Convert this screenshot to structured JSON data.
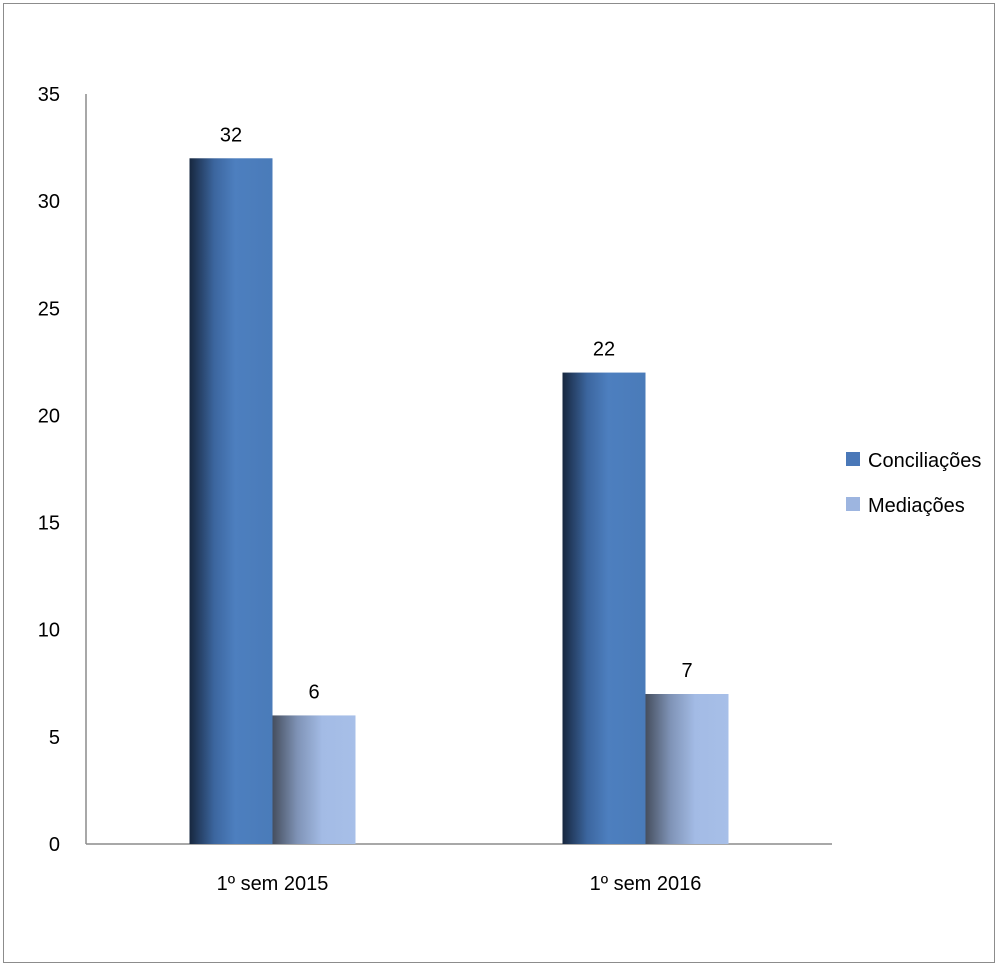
{
  "chart_data": {
    "type": "bar",
    "categories": [
      "1º sem 2015",
      "1º sem 2016"
    ],
    "series": [
      {
        "name": "Conciliações",
        "values": [
          32,
          22
        ],
        "color": "#4a78b8"
      },
      {
        "name": "Mediações",
        "values": [
          6,
          7
        ],
        "color": "#9db5e0"
      }
    ],
    "y_ticks": [
      "0",
      "5",
      "10",
      "15",
      "20",
      "25",
      "30",
      "35"
    ],
    "ylim": [
      0,
      35
    ],
    "data_labels": true,
    "grid": false,
    "legend_position": "right",
    "title": "",
    "xlabel": "",
    "ylabel": ""
  }
}
